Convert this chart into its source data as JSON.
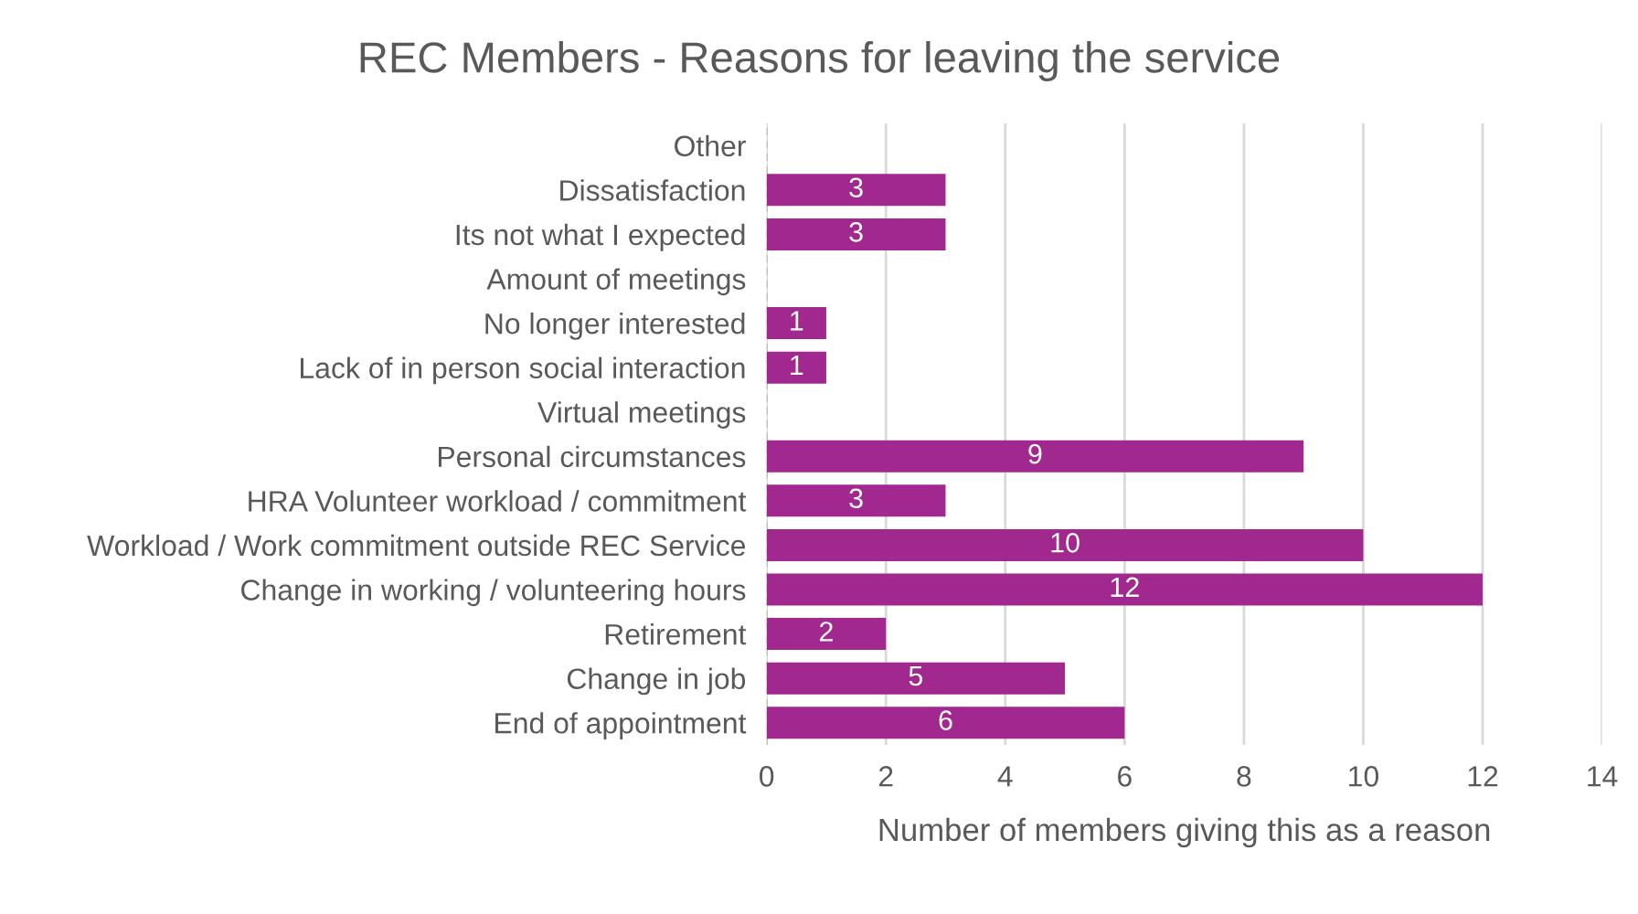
{
  "chart_data": {
    "type": "bar",
    "orientation": "horizontal",
    "title": "REC Members - Reasons for leaving the service",
    "xlabel": "Number of members giving this as a reason",
    "categories": [
      "Other",
      "Dissatisfaction",
      "Its not what I expected",
      "Amount of meetings",
      "No longer interested",
      "Lack of in person social interaction",
      "Virtual meetings",
      "Personal circumstances",
      "HRA Volunteer workload / commitment",
      "Workload / Work commitment outside REC Service",
      "Change in working / volunteering hours",
      "Retirement",
      "Change in job",
      "End of appointment"
    ],
    "values": [
      0,
      3,
      3,
      0,
      1,
      1,
      0,
      9,
      3,
      10,
      12,
      2,
      5,
      6
    ],
    "value_labels": [
      null,
      "3",
      "3",
      null,
      "1",
      "1",
      null,
      "9",
      "3",
      "10",
      "12",
      "2",
      "5",
      "6"
    ],
    "color": "#a0288e",
    "xlim": [
      0,
      14
    ],
    "xticks": [
      0,
      2,
      4,
      6,
      8,
      10,
      12,
      14
    ],
    "grid": "x"
  }
}
